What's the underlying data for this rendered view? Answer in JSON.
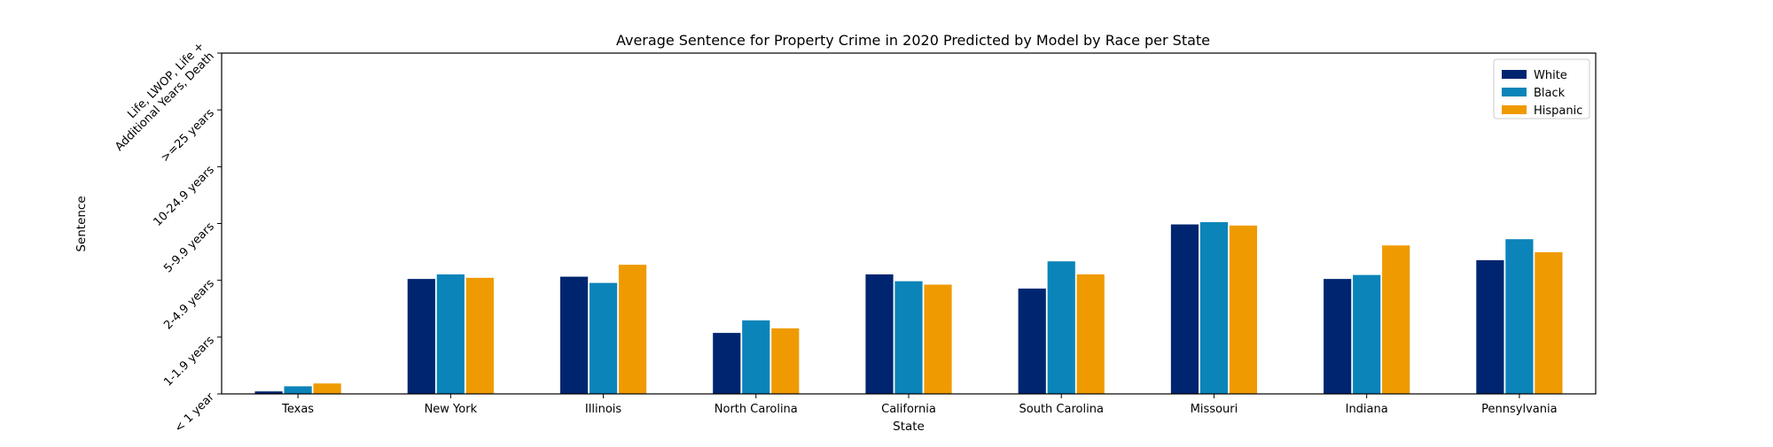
{
  "chart_data": {
    "type": "bar",
    "title": "Average Sentence for Property Crime in 2020 Predicted by Model by Race per State",
    "xlabel": "State",
    "ylabel": "Sentence",
    "categories": [
      "Texas",
      "New York",
      "Illinois",
      "North Carolina",
      "California",
      "South Carolina",
      "Missouri",
      "Indiana",
      "Pennsylvania"
    ],
    "y_ticks": [
      {
        "value": 0,
        "label": "< 1 year"
      },
      {
        "value": 1,
        "label": "1-1.9 years"
      },
      {
        "value": 2,
        "label": "2-4.9 years"
      },
      {
        "value": 3,
        "label": "5-9.9 years"
      },
      {
        "value": 4,
        "label": "10-24.9 years"
      },
      {
        "value": 5,
        "label": ">=25 years"
      },
      {
        "value": 6,
        "label": "Life, LWOP, Life +\nAdditional Years, Death"
      }
    ],
    "ylim": [
      0,
      6
    ],
    "grid": false,
    "legend_position": "top-right",
    "series": [
      {
        "name": "White",
        "color": "#002570",
        "values": [
          0.05,
          2.03,
          2.07,
          1.08,
          2.11,
          1.86,
          2.99,
          2.03,
          2.36
        ]
      },
      {
        "name": "Black",
        "color": "#0b84b9",
        "values": [
          0.14,
          2.11,
          1.96,
          1.3,
          1.99,
          2.34,
          3.03,
          2.1,
          2.73
        ]
      },
      {
        "name": "Hispanic",
        "color": "#ef9a00",
        "values": [
          0.19,
          2.05,
          2.28,
          1.16,
          1.93,
          2.11,
          2.97,
          2.62,
          2.5
        ]
      }
    ]
  }
}
